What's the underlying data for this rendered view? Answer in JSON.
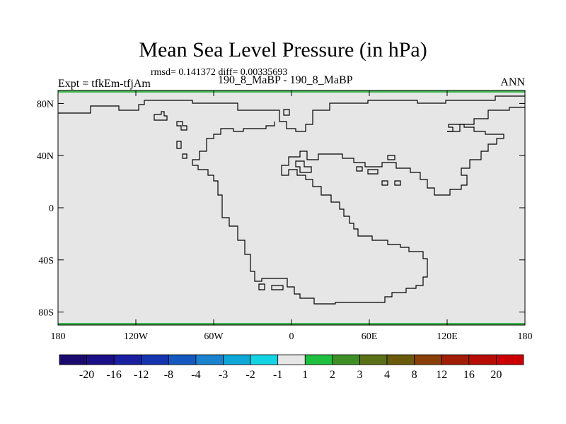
{
  "title": "Mean Sea Level Pressure (in hPa)",
  "stats": "rmsd= 0.141372 diff= 0.00335693",
  "subtitle_left": "Expt = tfkEm-tfjAm",
  "subtitle_center": "190_8_MaBP - 190_8_MaBP",
  "subtitle_right": "ANN",
  "map": {
    "lon_range": [
      -180,
      180
    ],
    "lat_range": [
      -90,
      90
    ],
    "fill_color": "#e6e6e6",
    "border_highlight_color": "#3cb44b",
    "lat_ticks": [
      {
        "lat": 80,
        "label": "80N"
      },
      {
        "lat": 40,
        "label": "40N"
      },
      {
        "lat": 0,
        "label": "0"
      },
      {
        "lat": -40,
        "label": "40S"
      },
      {
        "lat": -80,
        "label": "80S"
      }
    ],
    "lon_ticks": [
      {
        "lon": -180,
        "label": "180"
      },
      {
        "lon": -120,
        "label": "120W"
      },
      {
        "lon": -60,
        "label": "60W"
      },
      {
        "lon": 0,
        "label": "0"
      },
      {
        "lon": 60,
        "label": "60E"
      },
      {
        "lon": 120,
        "label": "120E"
      },
      {
        "lon": 180,
        "label": "180"
      }
    ]
  },
  "colorbar": {
    "labels": [
      "-20",
      "-16",
      "-12",
      "-8",
      "-4",
      "-3",
      "-2",
      "-1",
      "1",
      "2",
      "3",
      "4",
      "8",
      "12",
      "16",
      "20"
    ],
    "colors": [
      "#1a0a6e",
      "#1c0f86",
      "#1a1fa0",
      "#1535b0",
      "#1459bf",
      "#1a82cf",
      "#0fa6d8",
      "#12d4e2",
      "#e6e6e6",
      "#1fbf3f",
      "#3e8f26",
      "#5a6f16",
      "#6a5a0c",
      "#8a3f08",
      "#a21d06",
      "#b80d04",
      "#cc0000"
    ]
  }
}
